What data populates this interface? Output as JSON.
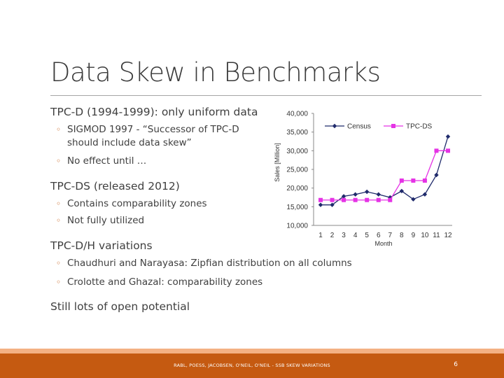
{
  "slide": {
    "title": "Data Skew in Benchmarks",
    "footer": "RABL, POESS, JACOBSEN, O'NEIL, O'NEIL - SSB SKEW VARIATIONS",
    "page_number": "6",
    "colors": {
      "accent": "#c55a11",
      "accent_light": "#f4b183",
      "census": "#1f2a6b",
      "tpcds": "#e533e5"
    }
  },
  "bullets": [
    {
      "text": "TPC-D (1994-1999): only uniform data"
    },
    {
      "text": "SIGMOD 1997 - “Successor of TPC-D"
    },
    {
      "text": "should include data skew”"
    },
    {
      "text": "No effect until …"
    },
    {
      "text": "TPC-DS (released 2012)"
    },
    {
      "text": "Contains comparability zones"
    },
    {
      "text": "Not fully utilized"
    },
    {
      "text": "TPC-D/H variations"
    },
    {
      "text": "Chaudhuri and Narayasa: Zipfian distribution on all columns"
    },
    {
      "text": "Crolotte and Ghazal: comparability zones"
    },
    {
      "text": "Still lots of open potential"
    }
  ],
  "bullet_marker": "◦",
  "chart_data": {
    "type": "line",
    "xlabel": "Month",
    "ylabel": "Sales [Million]",
    "x": [
      1,
      2,
      3,
      4,
      5,
      6,
      7,
      8,
      9,
      10,
      11,
      12
    ],
    "x_tick_labels": [
      "1",
      "2",
      "3",
      "4",
      "5",
      "6",
      "7",
      "8",
      "9",
      "10",
      "11",
      "12"
    ],
    "ylim": [
      10000,
      40000
    ],
    "y_ticks": [
      10000,
      15000,
      20000,
      25000,
      30000,
      35000,
      40000
    ],
    "y_tick_labels": [
      "10,000",
      "15,000",
      "20,000",
      "25,000",
      "30,000",
      "35,000",
      "40,000"
    ],
    "grid": false,
    "legend": "top",
    "series": [
      {
        "name": "Census",
        "color": "#1f2a6b",
        "marker": "diamond",
        "values": [
          15500,
          15500,
          17800,
          18300,
          19000,
          18300,
          17500,
          19200,
          17000,
          18300,
          23500,
          33800
        ]
      },
      {
        "name": "TPC-DS",
        "color": "#e533e5",
        "marker": "square",
        "values": [
          16800,
          16800,
          16800,
          16800,
          16800,
          16800,
          16800,
          22000,
          22000,
          22000,
          30000,
          30000
        ]
      }
    ]
  }
}
